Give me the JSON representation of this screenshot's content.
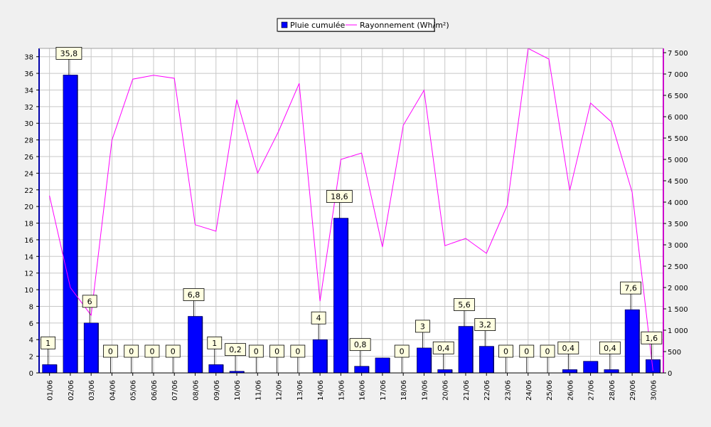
{
  "chart_data": {
    "type": "bar",
    "categories": [
      "01/06",
      "02/06",
      "03/06",
      "04/06",
      "05/06",
      "06/06",
      "07/06",
      "08/06",
      "09/06",
      "10/06",
      "11/06",
      "12/06",
      "13/06",
      "14/06",
      "15/06",
      "16/06",
      "17/06",
      "18/06",
      "19/06",
      "20/06",
      "21/06",
      "22/06",
      "23/06",
      "24/06",
      "25/06",
      "26/06",
      "27/06",
      "28/06",
      "29/06",
      "30/06"
    ],
    "series": [
      {
        "name": "Pluie cumulée",
        "type": "bar",
        "axis": "left",
        "color": "#0000ff",
        "values": [
          1,
          35.8,
          6,
          0,
          0,
          0,
          0,
          6.8,
          1,
          0.2,
          0,
          0,
          0,
          4,
          18.6,
          0.8,
          1.8,
          0,
          3,
          0.4,
          5.6,
          3.2,
          0,
          0,
          0,
          0.4,
          1.4,
          0.4,
          7.6,
          1.6
        ],
        "labels": [
          "1",
          "35,8",
          "6",
          "0",
          "0",
          "0",
          "0",
          "6,8",
          "1",
          "0,2",
          "0",
          "0",
          "0",
          "4",
          "18,6",
          "0,8",
          null,
          "0",
          "3",
          "0,4",
          "5,6",
          "3,2",
          "0",
          "0",
          "0",
          "0,4",
          null,
          "0,4",
          "7,6",
          "1,6"
        ]
      },
      {
        "name": "Rayonnement (Wh/m²)",
        "type": "line",
        "axis": "right",
        "color": "#ff00ff",
        "values": [
          4150,
          2000,
          1350,
          5450,
          6880,
          6970,
          6900,
          3470,
          3320,
          6400,
          4680,
          5650,
          6780,
          1680,
          5000,
          5150,
          2950,
          5800,
          6620,
          2980,
          3150,
          2800,
          3930,
          7600,
          7350,
          4270,
          6320,
          5880,
          4230,
          50
        ]
      }
    ],
    "y_left": {
      "min": 0,
      "max": 39,
      "ticks": [
        0,
        2,
        4,
        6,
        8,
        10,
        12,
        14,
        16,
        18,
        20,
        22,
        24,
        26,
        28,
        30,
        32,
        34,
        36,
        38
      ]
    },
    "y_right": {
      "min": 0,
      "max": 7600,
      "ticks": [
        0,
        500,
        1000,
        1500,
        2000,
        2500,
        3000,
        3500,
        4000,
        4500,
        5000,
        5500,
        6000,
        6500,
        7000,
        7500
      ]
    },
    "grid": true,
    "legend": "top-center",
    "title": "",
    "xlabel": "",
    "ylabel": ""
  }
}
